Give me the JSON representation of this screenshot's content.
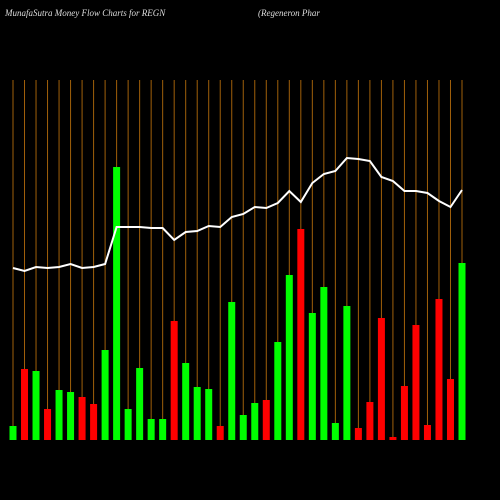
{
  "chart_data": {
    "type": "bar",
    "title": "MunafaSutra  Money Flow  Charts for REGN",
    "subtitle": "(Regeneron  Phar",
    "categories": [
      null,
      null,
      null,
      null,
      null,
      null,
      null,
      null,
      null,
      null,
      null,
      null,
      null,
      null,
      null,
      null,
      null,
      null,
      null,
      null,
      null,
      null,
      null,
      null,
      null,
      null,
      null,
      null,
      null,
      null,
      null,
      null,
      null,
      null,
      null,
      null,
      null,
      null,
      null,
      null
    ],
    "ylim": [
      0,
      360
    ],
    "series": [
      {
        "type": "bar",
        "values": [
          14,
          71,
          69,
          31,
          50,
          48,
          43,
          36,
          90,
          273,
          31,
          72,
          21,
          21,
          119,
          77,
          53,
          51,
          14,
          138,
          25,
          37,
          40,
          98,
          165,
          211,
          127,
          153,
          17,
          134,
          12,
          38,
          122,
          3,
          54,
          115,
          15,
          141,
          61,
          177
        ],
        "colors": [
          "#00ff00",
          "#ff0000",
          "#00ff00",
          "#ff0000",
          "#00ff00",
          "#00ff00",
          "#ff0000",
          "#ff0000",
          "#00ff00",
          "#00ff00",
          "#00ff00",
          "#00ff00",
          "#00ff00",
          "#00ff00",
          "#ff0000",
          "#00ff00",
          "#00ff00",
          "#00ff00",
          "#ff0000",
          "#00ff00",
          "#00ff00",
          "#00ff00",
          "#ff0000",
          "#00ff00",
          "#00ff00",
          "#ff0000",
          "#00ff00",
          "#00ff00",
          "#00ff00",
          "#00ff00",
          "#ff0000",
          "#ff0000",
          "#ff0000",
          "#ff0000",
          "#ff0000",
          "#ff0000",
          "#ff0000",
          "#ff0000",
          "#ff0000",
          "#00ff00"
        ]
      },
      {
        "type": "line",
        "color": "#ffffff",
        "values": [
          172,
          169,
          173,
          172,
          173,
          176,
          172,
          173,
          176,
          213,
          213,
          213,
          212,
          212,
          200,
          208,
          209,
          214,
          213,
          223,
          226,
          233,
          232,
          237,
          249,
          238,
          257,
          266,
          269,
          282,
          281,
          279,
          263,
          259,
          249,
          249,
          247,
          239,
          233,
          250
        ]
      }
    ]
  }
}
